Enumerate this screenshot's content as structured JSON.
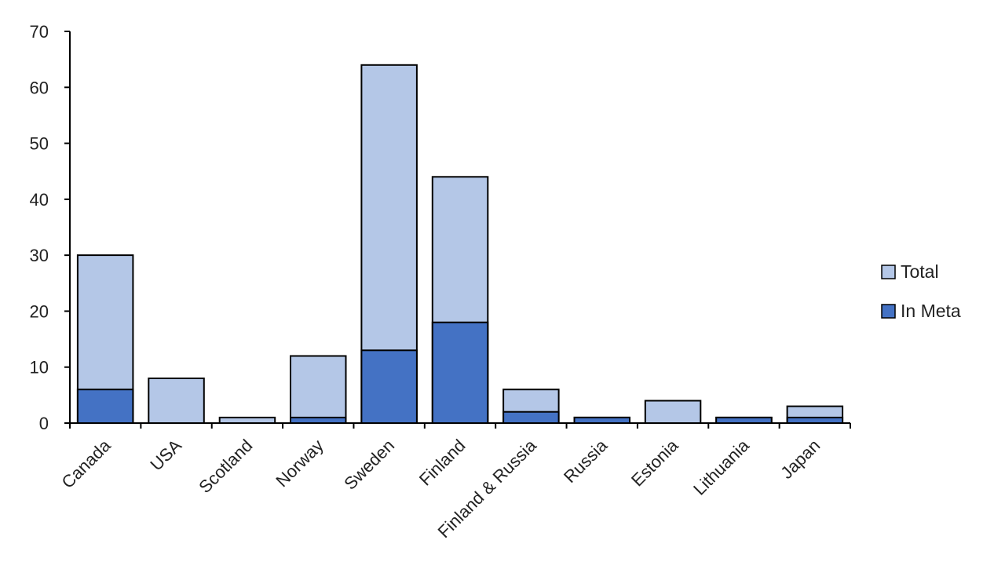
{
  "chart_data": {
    "type": "bar",
    "stacked": "overlay",
    "categories": [
      "Canada",
      "USA",
      "Scotland",
      "Norway",
      "Sweden",
      "Finland",
      "Finland & Russia",
      "Russia",
      "Estonia",
      "Lithuania",
      "Japan"
    ],
    "series": [
      {
        "name": "Total",
        "color": "#b4c7e7",
        "values": [
          30,
          8,
          1,
          12,
          64,
          44,
          6,
          1,
          4,
          1,
          3
        ]
      },
      {
        "name": "In Meta",
        "color": "#4472c4",
        "values": [
          6,
          0,
          0,
          1,
          13,
          18,
          2,
          1,
          0,
          1,
          1
        ]
      }
    ],
    "title": "",
    "xlabel": "",
    "ylabel": "",
    "ylim": [
      0,
      70
    ],
    "yticks": [
      0,
      10,
      20,
      30,
      40,
      50,
      60,
      70
    ],
    "grid": false,
    "legend_position": "right"
  }
}
